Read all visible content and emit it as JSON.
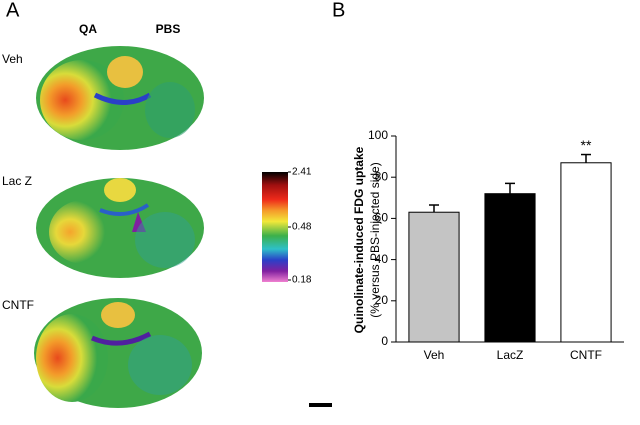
{
  "panel_a": {
    "label": "A",
    "columns": [
      "QA",
      "PBS"
    ],
    "rows": [
      "Veh",
      "Lac Z",
      "CNTF"
    ],
    "colorbar": {
      "ticks": [
        2.41,
        0.48,
        0.18
      ]
    }
  },
  "chart_data": {
    "type": "bar",
    "panel_label": "B",
    "y_label_lines": [
      "Quinolinate-induced FDG uptake",
      "(% versus PBS-injected side)"
    ],
    "categories": [
      "Veh",
      "LacZ",
      "CNTF"
    ],
    "values": [
      63,
      72,
      87
    ],
    "errors": [
      3.5,
      5,
      4
    ],
    "colors": [
      "#c4c4c4",
      "#000000",
      "#ffffff"
    ],
    "edge_color": "#000000",
    "annotation": "**",
    "ylim": [
      0,
      100
    ],
    "yticks": [
      0,
      20,
      40,
      60,
      80,
      100
    ]
  }
}
